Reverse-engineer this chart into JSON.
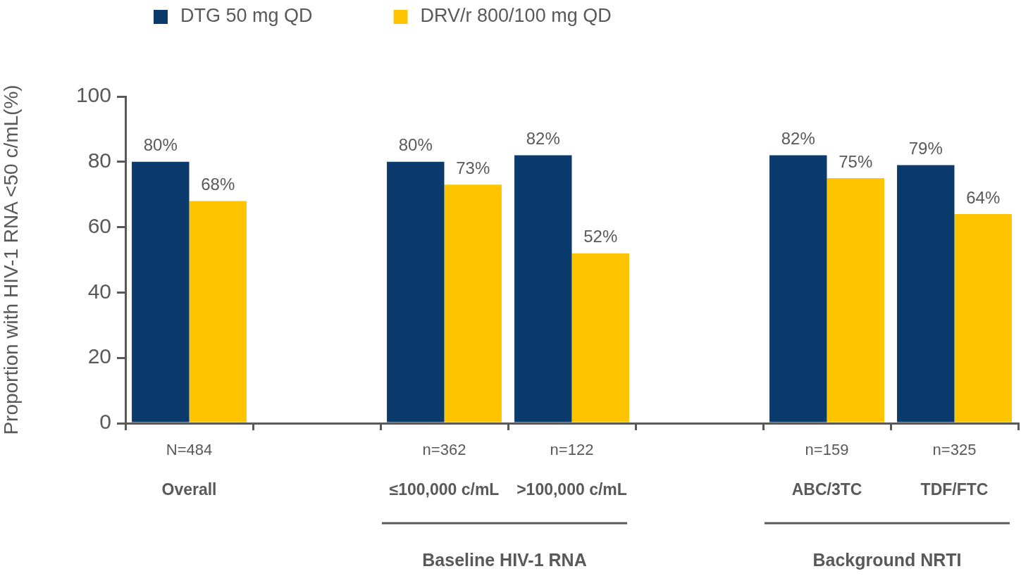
{
  "chart_data": {
    "type": "bar",
    "ylabel": "Proportion with HIV-1 RNA <50 c/mL(%)",
    "categories": [
      "N=484\nOverall",
      null,
      "n=362\n≤100,000 c/mL",
      "n=122\n>100,000 c/mL",
      null,
      "n=159\nABC/3TC",
      "n=325\nTDF/FTC"
    ],
    "series": [
      {
        "name": "DTG 50 mg QD",
        "color": "#0b3b6c",
        "values": [
          80,
          null,
          80,
          82,
          null,
          82,
          79
        ],
        "value_labels": [
          "80%",
          null,
          "80%",
          "82%",
          null,
          "82%",
          "79%"
        ]
      },
      {
        "name": "DRV/r 800/100 mg QD",
        "color": "#fec400",
        "values": [
          68,
          null,
          73,
          52,
          null,
          75,
          64
        ],
        "value_labels": [
          "68%",
          null,
          "73%",
          "52%",
          null,
          "75%",
          "64%"
        ]
      }
    ],
    "ylim": [
      0,
      100
    ],
    "yticks": [
      0,
      20,
      40,
      60,
      80,
      100
    ],
    "grid": false,
    "legend": "top left",
    "annotations": [
      "Baseline HIV-1 RNA",
      "Background NRTI"
    ]
  }
}
